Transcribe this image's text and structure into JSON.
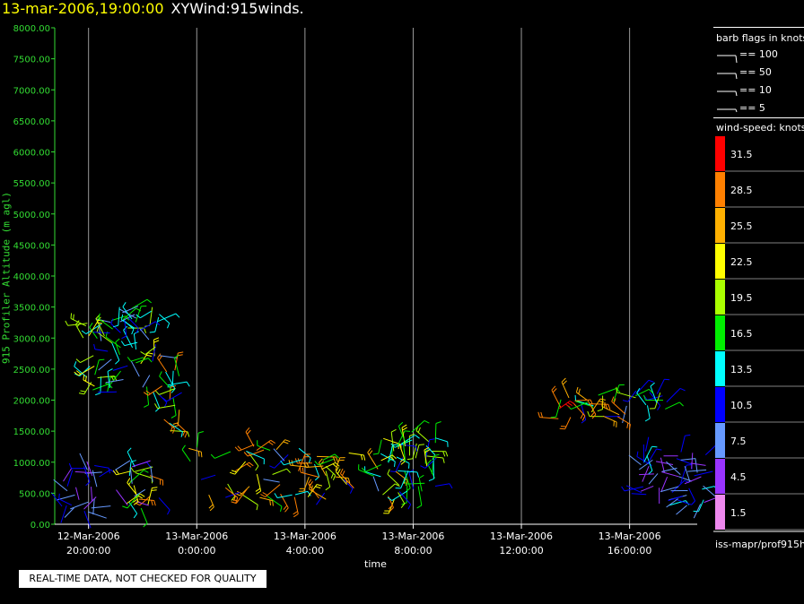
{
  "header": {
    "date": "13-mar-2006,19:00:00",
    "title": "XYWind:915winds."
  },
  "legend": {
    "barb_title": "barb flags in knots",
    "barb_entries": [
      "== 100",
      "== 50",
      "== 10",
      "== 5"
    ],
    "speed_title": "wind-speed: knots",
    "speed_labels": [
      "31.5",
      "28.5",
      "25.5",
      "22.5",
      "19.5",
      "16.5",
      "13.5",
      "10.5",
      "7.5",
      "4.5",
      "1.5"
    ],
    "speed_colors": [
      "#ff0000",
      "#ff8000",
      "#ffb000",
      "#ffff00",
      "#aaff00",
      "#00ee00",
      "#00ffff",
      "#0000ff",
      "#6699ff",
      "#9933ff",
      "#ee88ee"
    ]
  },
  "footer": {
    "quality_notice": "REAL-TIME DATA, NOT CHECKED FOR QUALITY",
    "source": "iss-mapr/prof915h"
  },
  "chart_data": {
    "type": "scatter",
    "ylabel": "915 Profiler Altitude (m agl)",
    "xlabel": "time",
    "ylim": [
      0,
      8000
    ],
    "y_ticks": [
      "8000.00",
      "7500.00",
      "7000.00",
      "6500.00",
      "6000.00",
      "5500.00",
      "5000.00",
      "4500.00",
      "4000.00",
      "3500.00",
      "3000.00",
      "2500.00",
      "2000.00",
      "1500.00",
      "1000.00",
      "500.00",
      "0.00"
    ],
    "xlim_hours": [
      -1.25,
      22.5
    ],
    "x_ticks": [
      {
        "hour": 0,
        "line1": "12-Mar-2006",
        "line2": "20:00:00"
      },
      {
        "hour": 4,
        "line1": "13-Mar-2006",
        "line2": "0:00:00"
      },
      {
        "hour": 8,
        "line1": "13-Mar-2006",
        "line2": "4:00:00"
      },
      {
        "hour": 12,
        "line1": "13-Mar-2006",
        "line2": "8:00:00"
      },
      {
        "hour": 16,
        "line1": "13-Mar-2006",
        "line2": "12:00:00"
      },
      {
        "hour": 20,
        "line1": "13-Mar-2006",
        "line2": "16:00:00"
      }
    ],
    "grid": "vertical",
    "clusters": [
      {
        "t": [
          -1.0,
          0.4
        ],
        "z": [
          150,
          950
        ],
        "speed": [
          4,
          12
        ]
      },
      {
        "t": [
          -0.2,
          2.7
        ],
        "z": [
          2100,
          3500
        ],
        "speed": [
          8,
          22
        ]
      },
      {
        "t": [
          2.7,
          3.5
        ],
        "z": [
          1500,
          2500
        ],
        "speed": [
          8,
          30
        ]
      },
      {
        "t": [
          1.3,
          2.7
        ],
        "z": [
          250,
          1050
        ],
        "speed": [
          4,
          30
        ]
      },
      {
        "t": [
          3.6,
          11.7
        ],
        "z": [
          400,
          1300
        ],
        "speed": [
          8,
          30
        ]
      },
      {
        "t": [
          10.8,
          12.9
        ],
        "z": [
          500,
          1500
        ],
        "speed": [
          10,
          22
        ]
      },
      {
        "t": [
          17.3,
          20.3
        ],
        "z": [
          1700,
          2100
        ],
        "speed": [
          8,
          31
        ]
      },
      {
        "t": [
          20.0,
          21.7
        ],
        "z": [
          1850,
          2150
        ],
        "speed": [
          10,
          22
        ]
      },
      {
        "t": [
          20.4,
          23.0
        ],
        "z": [
          300,
          1200
        ],
        "speed": [
          4,
          14
        ]
      }
    ]
  }
}
